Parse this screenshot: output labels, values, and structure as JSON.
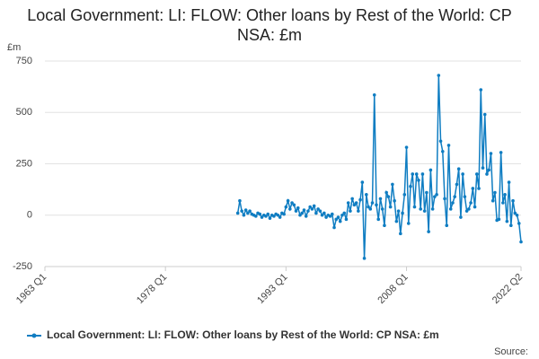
{
  "chart_data": {
    "type": "line",
    "title": "Local Government: LI: FLOW: Other loans by Rest of the World: CP NSA: £m",
    "y_label": "£m",
    "source": "Source:",
    "xlim": [
      "1963 Q1",
      "2022 Q2"
    ],
    "xticks": [
      "1963 Q1",
      "1978 Q1",
      "1993 Q1",
      "2008 Q1",
      "2022 Q2"
    ],
    "ylim": [
      -250,
      750
    ],
    "yticks": [
      -250,
      0,
      250,
      500,
      750
    ],
    "grid": true,
    "x": [
      "1987 Q1",
      "1987 Q2",
      "1987 Q3",
      "1987 Q4",
      "1988 Q1",
      "1988 Q2",
      "1988 Q3",
      "1988 Q4",
      "1989 Q1",
      "1989 Q2",
      "1989 Q3",
      "1989 Q4",
      "1990 Q1",
      "1990 Q2",
      "1990 Q3",
      "1990 Q4",
      "1991 Q1",
      "1991 Q2",
      "1991 Q3",
      "1991 Q4",
      "1992 Q1",
      "1992 Q2",
      "1992 Q3",
      "1992 Q4",
      "1993 Q1",
      "1993 Q2",
      "1993 Q3",
      "1993 Q4",
      "1994 Q1",
      "1994 Q2",
      "1994 Q3",
      "1994 Q4",
      "1995 Q1",
      "1995 Q2",
      "1995 Q3",
      "1995 Q4",
      "1996 Q1",
      "1996 Q2",
      "1996 Q3",
      "1996 Q4",
      "1997 Q1",
      "1997 Q2",
      "1997 Q3",
      "1997 Q4",
      "1998 Q1",
      "1998 Q2",
      "1998 Q3",
      "1998 Q4",
      "1999 Q1",
      "1999 Q2",
      "1999 Q3",
      "1999 Q4",
      "2000 Q1",
      "2000 Q2",
      "2000 Q3",
      "2000 Q4",
      "2001 Q1",
      "2001 Q2",
      "2001 Q3",
      "2001 Q4",
      "2002 Q1",
      "2002 Q2",
      "2002 Q3",
      "2002 Q4",
      "2003 Q1",
      "2003 Q2",
      "2003 Q3",
      "2003 Q4",
      "2004 Q1",
      "2004 Q2",
      "2004 Q3",
      "2004 Q4",
      "2005 Q1",
      "2005 Q2",
      "2005 Q3",
      "2005 Q4",
      "2006 Q1",
      "2006 Q2",
      "2006 Q3",
      "2006 Q4",
      "2007 Q1",
      "2007 Q2",
      "2007 Q3",
      "2007 Q4",
      "2008 Q1",
      "2008 Q2",
      "2008 Q3",
      "2008 Q4",
      "2009 Q1",
      "2009 Q2",
      "2009 Q3",
      "2009 Q4",
      "2010 Q1",
      "2010 Q2",
      "2010 Q3",
      "2010 Q4",
      "2011 Q1",
      "2011 Q2",
      "2011 Q3",
      "2011 Q4",
      "2012 Q1",
      "2012 Q2",
      "2012 Q3",
      "2012 Q4",
      "2013 Q1",
      "2013 Q2",
      "2013 Q3",
      "2013 Q4",
      "2014 Q1",
      "2014 Q2",
      "2014 Q3",
      "2014 Q4",
      "2015 Q1",
      "2015 Q2",
      "2015 Q3",
      "2015 Q4",
      "2016 Q1",
      "2016 Q2",
      "2016 Q3",
      "2016 Q4",
      "2017 Q1",
      "2017 Q2",
      "2017 Q3",
      "2017 Q4",
      "2018 Q1",
      "2018 Q2",
      "2018 Q3",
      "2018 Q4",
      "2019 Q1",
      "2019 Q2",
      "2019 Q3",
      "2019 Q4",
      "2020 Q1",
      "2020 Q2",
      "2020 Q3",
      "2020 Q4",
      "2021 Q1",
      "2021 Q2",
      "2021 Q3",
      "2021 Q4",
      "2022 Q1",
      "2022 Q2"
    ],
    "series": [
      {
        "name": "Local Government: LI: FLOW: Other loans by Rest of the World: CP NSA: £m",
        "color": "#0f7dc2",
        "values": [
          10,
          70,
          20,
          0,
          25,
          10,
          20,
          5,
          0,
          -5,
          10,
          5,
          -10,
          0,
          -5,
          5,
          -15,
          0,
          -5,
          5,
          0,
          -10,
          10,
          5,
          40,
          70,
          30,
          60,
          50,
          20,
          35,
          0,
          10,
          25,
          -5,
          20,
          40,
          30,
          45,
          10,
          30,
          20,
          0,
          10,
          -10,
          0,
          -5,
          5,
          -60,
          -20,
          -10,
          -30,
          0,
          10,
          -20,
          60,
          20,
          80,
          50,
          60,
          20,
          75,
          160,
          -210,
          100,
          40,
          30,
          60,
          585,
          50,
          -20,
          80,
          30,
          -50,
          110,
          90,
          40,
          150,
          70,
          -30,
          20,
          -90,
          10,
          100,
          330,
          -40,
          140,
          200,
          40,
          200,
          170,
          30,
          200,
          20,
          110,
          -80,
          220,
          30,
          90,
          100,
          680,
          360,
          310,
          80,
          -50,
          340,
          30,
          60,
          90,
          150,
          225,
          -10,
          200,
          90,
          20,
          30,
          60,
          130,
          40,
          200,
          130,
          610,
          230,
          490,
          200,
          220,
          300,
          70,
          110,
          -25,
          -20,
          305,
          60,
          100,
          -30,
          160,
          -50,
          70,
          10,
          0,
          -40,
          -130
        ]
      }
    ]
  }
}
